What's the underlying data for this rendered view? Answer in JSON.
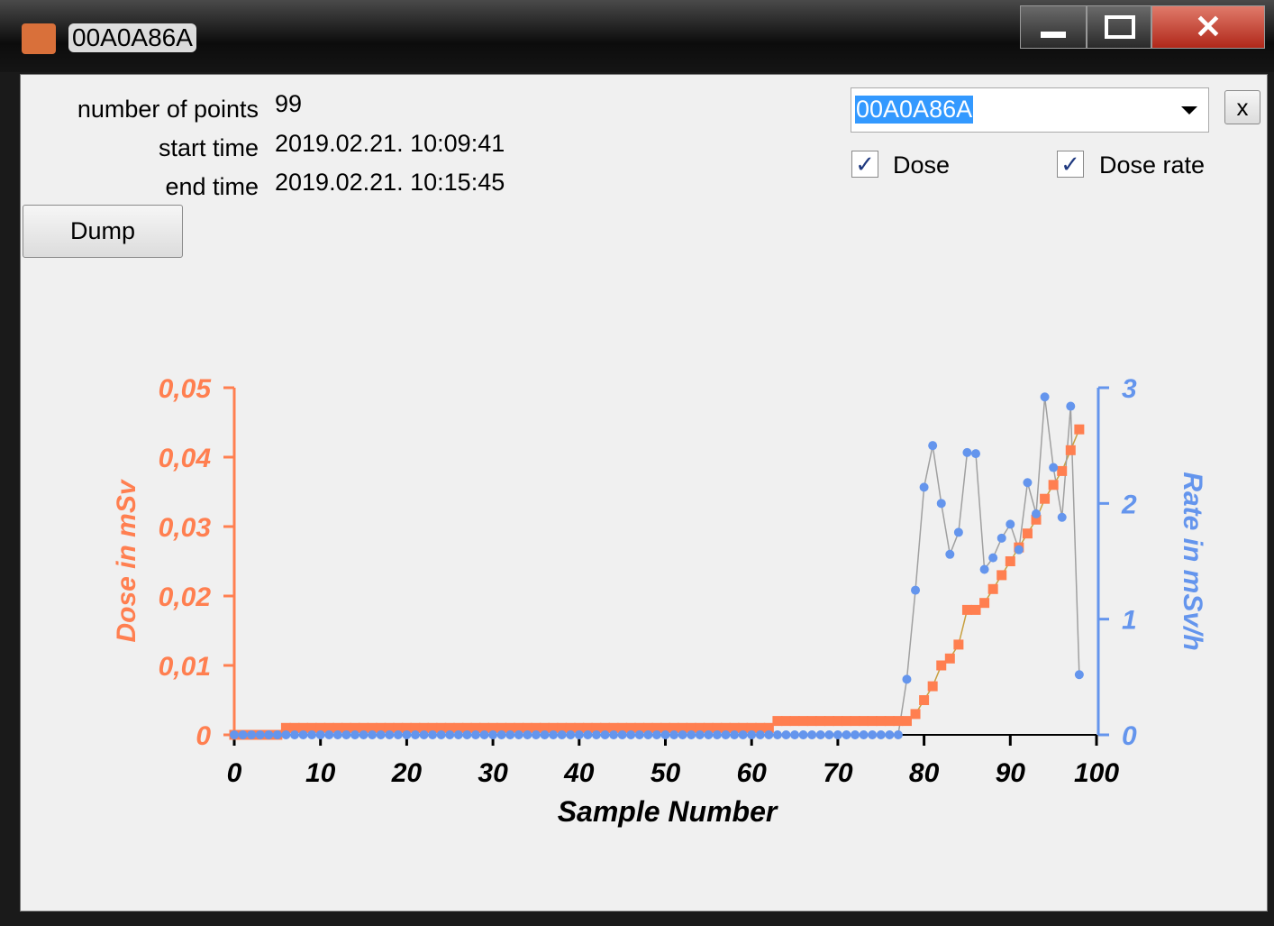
{
  "window": {
    "title": "00A0A86A"
  },
  "info": {
    "rows": [
      {
        "label": "number of points",
        "value": "99"
      },
      {
        "label": "start time",
        "value": "2019.02.21. 10:09:41"
      },
      {
        "label": "end time",
        "value": "2019.02.21. 10:15:45"
      }
    ]
  },
  "dump_button": "Dump",
  "selector": {
    "value": "00A0A86A",
    "clear_button": "x"
  },
  "checkboxes": [
    {
      "label": "Dose",
      "checked": true
    },
    {
      "label": "Dose rate",
      "checked": true
    }
  ],
  "chart_data": {
    "type": "line",
    "xlabel": "Sample Number",
    "ylabel": "Dose in mSv",
    "y2label": "Rate in mSv/h",
    "x": [
      0,
      1,
      2,
      3,
      4,
      5,
      6,
      7,
      8,
      9,
      10,
      11,
      12,
      13,
      14,
      15,
      16,
      17,
      18,
      19,
      20,
      21,
      22,
      23,
      24,
      25,
      26,
      27,
      28,
      29,
      30,
      31,
      32,
      33,
      34,
      35,
      36,
      37,
      38,
      39,
      40,
      41,
      42,
      43,
      44,
      45,
      46,
      47,
      48,
      49,
      50,
      51,
      52,
      53,
      54,
      55,
      56,
      57,
      58,
      59,
      60,
      61,
      62,
      63,
      64,
      65,
      66,
      67,
      68,
      69,
      70,
      71,
      72,
      73,
      74,
      75,
      76,
      77,
      78,
      79,
      80,
      81,
      82,
      83,
      84,
      85,
      86,
      87,
      88,
      89,
      90,
      91,
      92,
      93,
      94,
      95,
      96,
      97,
      98
    ],
    "series": [
      {
        "name": "Dose",
        "color": "#ff7f50",
        "line_color": "#c8a040",
        "marker": "square",
        "axis": "y",
        "values": [
          0,
          0,
          0,
          0,
          0,
          0,
          0.001,
          0.001,
          0.001,
          0.001,
          0.001,
          0.001,
          0.001,
          0.001,
          0.001,
          0.001,
          0.001,
          0.001,
          0.001,
          0.001,
          0.001,
          0.001,
          0.001,
          0.001,
          0.001,
          0.001,
          0.001,
          0.001,
          0.001,
          0.001,
          0.001,
          0.001,
          0.001,
          0.001,
          0.001,
          0.001,
          0.001,
          0.001,
          0.001,
          0.001,
          0.001,
          0.001,
          0.001,
          0.001,
          0.001,
          0.001,
          0.001,
          0.001,
          0.001,
          0.001,
          0.001,
          0.001,
          0.001,
          0.001,
          0.001,
          0.001,
          0.001,
          0.001,
          0.001,
          0.001,
          0.001,
          0.001,
          0.001,
          0.002,
          0.002,
          0.002,
          0.002,
          0.002,
          0.002,
          0.002,
          0.002,
          0.002,
          0.002,
          0.002,
          0.002,
          0.002,
          0.002,
          0.002,
          0.002,
          0.003,
          0.005,
          0.007,
          0.01,
          0.011,
          0.013,
          0.018,
          0.018,
          0.019,
          0.021,
          0.023,
          0.025,
          0.027,
          0.029,
          0.031,
          0.034,
          0.036,
          0.038,
          0.041,
          0.044
        ]
      },
      {
        "name": "Dose rate",
        "color": "#6495ed",
        "line_color": "#a0a0a0",
        "marker": "circle",
        "axis": "y2",
        "values": [
          0,
          0,
          0,
          0,
          0,
          0,
          0,
          0,
          0,
          0,
          0,
          0,
          0,
          0,
          0,
          0,
          0,
          0,
          0,
          0,
          0,
          0,
          0,
          0,
          0,
          0,
          0,
          0,
          0,
          0,
          0,
          0,
          0,
          0,
          0,
          0,
          0,
          0,
          0,
          0,
          0,
          0,
          0,
          0,
          0,
          0,
          0,
          0,
          0,
          0,
          0,
          0,
          0,
          0,
          0,
          0,
          0,
          0,
          0,
          0,
          0,
          0,
          0,
          0,
          0,
          0,
          0,
          0,
          0,
          0,
          0,
          0,
          0,
          0,
          0,
          0,
          0,
          0,
          0.48,
          1.25,
          2.14,
          2.5,
          2.0,
          1.56,
          1.75,
          2.44,
          2.43,
          1.43,
          1.53,
          1.7,
          1.82,
          1.6,
          2.18,
          1.91,
          2.92,
          2.31,
          1.88,
          2.84,
          0.52
        ]
      }
    ],
    "xlim": [
      0,
      100
    ],
    "xticks": [
      0,
      10,
      20,
      30,
      40,
      50,
      60,
      70,
      80,
      90,
      100
    ],
    "ylim": [
      0,
      0.05
    ],
    "yticks": [
      0,
      {
        "value": 0.01,
        "label": "0,01"
      },
      {
        "value": 0.02,
        "label": "0,02"
      },
      {
        "value": 0.03,
        "label": "0,03"
      },
      {
        "value": 0.04,
        "label": "0,04"
      },
      {
        "value": 0.05,
        "label": "0,05"
      }
    ],
    "y2lim": [
      0,
      3
    ],
    "y2ticks": [
      0,
      1,
      2,
      3
    ]
  }
}
